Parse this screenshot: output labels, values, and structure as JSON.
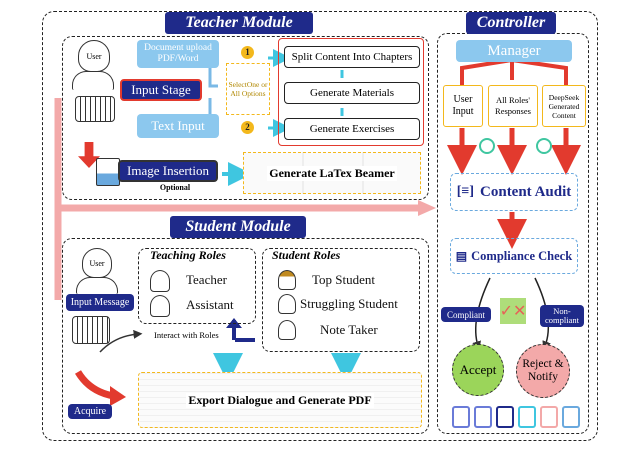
{
  "teacher": {
    "title": "Teacher Module",
    "user": "User",
    "input_stage": "Input Stage",
    "doc_upload": "Document upload PDF/Word",
    "text_input": "Text Input",
    "select_one": "SelectOne or All Options",
    "badge1": "1",
    "badge2": "2",
    "split": "Split Content Into Chapters",
    "materials": "Generate Materials",
    "exercises": "Generate Exercises",
    "image_insertion": "Image Insertion",
    "optional": "Optional",
    "beamer": "Generate LaTex Beamer"
  },
  "controller": {
    "title": "Controller",
    "manager": "Manager",
    "user_input": "User Input",
    "all_roles": "All Roles' Responses",
    "deepseek": "DeepSeek Generated Content",
    "content_audit": "Content Audit",
    "compliance": "Compliance Check",
    "compliant": "Compliant",
    "non_compliant": "Non-compliant",
    "accept": "Accept",
    "reject": "Reject & Notify"
  },
  "student": {
    "title": "Student Module",
    "user": "User",
    "input_message": "Input Message",
    "acquire": "Acquire",
    "teaching_roles": "Teaching Roles",
    "teacher": "Teacher",
    "assistant": "Assistant",
    "student_roles": "Student Roles",
    "top_student": "Top Student",
    "struggling": "Struggling Student",
    "note_taker": "Note Taker",
    "interact": "Interact with Roles",
    "export": "Export Dialogue and Generate PDF"
  },
  "colors": {
    "navy": "#1f2a8a",
    "light_blue": "#8cc8ee",
    "red": "#e23a2e",
    "yellow": "#f3b81c",
    "pink": "#f2a8a8",
    "accept_green": "#9bd55a"
  }
}
